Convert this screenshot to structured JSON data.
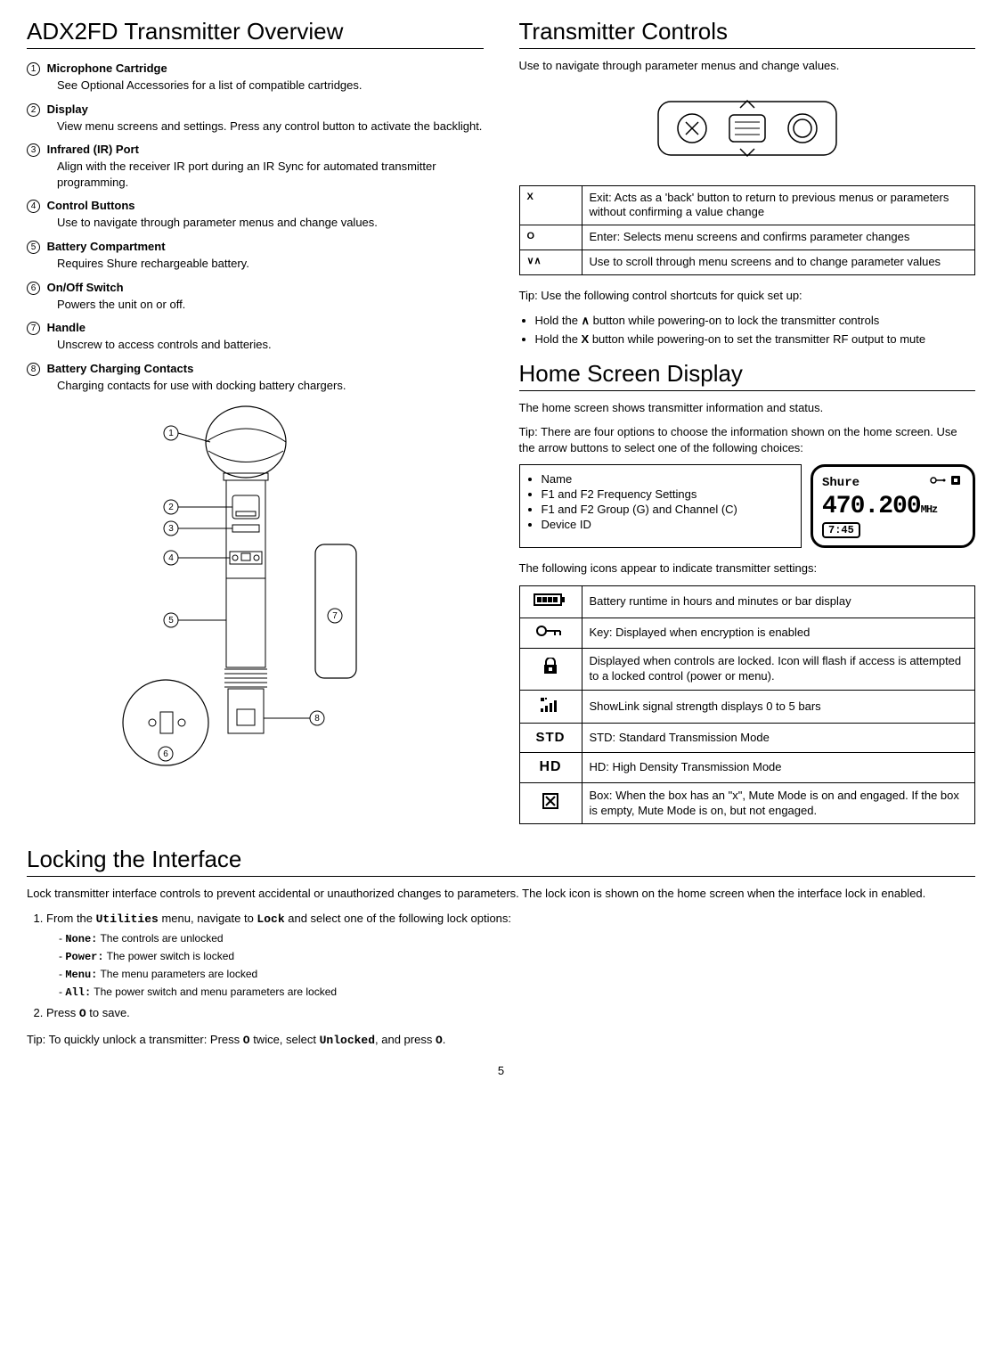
{
  "page_number": "5",
  "left": {
    "heading": "ADX2FD Transmitter Overview",
    "items": [
      {
        "num": "1",
        "title": "Microphone Cartridge",
        "desc": "See Optional Accessories for a list of compatible cartridges."
      },
      {
        "num": "2",
        "title": "Display",
        "desc": "View menu screens and settings. Press any control button to activate the backlight."
      },
      {
        "num": "3",
        "title": "Infrared (IR) Port",
        "desc": "Align with the receiver IR port during an IR Sync for automated transmitter programming."
      },
      {
        "num": "4",
        "title": "Control Buttons",
        "desc": "Use to navigate through parameter menus and change values."
      },
      {
        "num": "5",
        "title": "Battery Compartment",
        "desc": "Requires Shure rechargeable battery."
      },
      {
        "num": "6",
        "title": "On/Off Switch",
        "desc": "Powers the unit on or off."
      },
      {
        "num": "7",
        "title": "Handle",
        "desc": "Unscrew to access controls and batteries."
      },
      {
        "num": "8",
        "title": "Battery Charging Contacts",
        "desc": "Charging contacts for use with docking battery chargers."
      }
    ],
    "diagram_callouts": [
      "1",
      "2",
      "3",
      "4",
      "5",
      "6",
      "7",
      "8"
    ]
  },
  "right_controls": {
    "heading": "Transmitter Controls",
    "intro": "Use to navigate through parameter menus and change values.",
    "rows": [
      {
        "key": "X",
        "desc": "Exit: Acts as a 'back' button to return to previous menus or parameters without confirming a value change"
      },
      {
        "key": "O",
        "desc": "Enter: Selects menu screens and confirms parameter changes"
      },
      {
        "key": "∨∧",
        "desc": "Use to scroll through menu screens and to change parameter values"
      }
    ],
    "tip_intro": "Tip: Use the following control shortcuts for quick set up:",
    "tips": [
      "Hold the ∧ button while powering-on to lock the transmitter controls",
      "Hold the X button while powering-on to set the transmitter RF output to mute"
    ],
    "tip_bold_tokens": [
      "∧",
      "X"
    ]
  },
  "right_home": {
    "heading": "Home Screen Display",
    "p1": "The home screen shows transmitter information and status.",
    "p2": "Tip: There are four options to choose the information shown on the home screen. Use the arrow buttons to select one of the following choices:",
    "options": [
      "Name",
      "F1 and F2 Frequency Settings",
      "F1 and F2 Group (G) and Channel (C)",
      "Device ID"
    ],
    "screen": {
      "name": "Shure",
      "freq": "470.200",
      "unit": "MHz",
      "time": "7:45"
    },
    "icons_intro": "The following icons appear to indicate transmitter settings:",
    "icon_rows": [
      {
        "label": "battery",
        "desc": "Battery runtime in hours and minutes or bar display"
      },
      {
        "label": "key",
        "desc": "Key: Displayed when encryption is enabled"
      },
      {
        "label": "lock",
        "desc": "Displayed when controls are locked. Icon will flash if access is attempted to a locked control (power or menu)."
      },
      {
        "label": "signal",
        "desc": "ShowLink signal strength displays 0 to 5 bars"
      },
      {
        "label": "STD",
        "desc": "STD: Standard Transmission Mode"
      },
      {
        "label": "HD",
        "desc": "HD: High Density Transmission Mode"
      },
      {
        "label": "box",
        "desc": "Box: When the box has an \"x\", Mute Mode is on and engaged. If the box is empty, Mute Mode is on, but not engaged."
      }
    ]
  },
  "locking": {
    "heading": "Locking the Interface",
    "p1": "Lock transmitter interface controls to prevent accidental or unauthorized changes to parameters. The lock icon is shown on the home screen when the interface lock in enabled.",
    "step1_pre": "From the ",
    "step1_mono1": "Utilities",
    "step1_mid": " menu, navigate to ",
    "step1_mono2": "Lock",
    "step1_post": " and select one of the following lock options:",
    "options": [
      {
        "k": "None:",
        "v": " The controls are unlocked"
      },
      {
        "k": "Power:",
        "v": " The power switch is locked"
      },
      {
        "k": "Menu:",
        "v": " The menu parameters are locked"
      },
      {
        "k": "All:",
        "v": " The power switch and menu parameters are locked"
      }
    ],
    "step2_pre": "Press ",
    "step2_mono": "O",
    "step2_post": " to save.",
    "tip_pre": "Tip: To quickly unlock a transmitter: Press ",
    "tip_m1": "O",
    "tip_mid1": " twice, select ",
    "tip_m2": "Unlocked",
    "tip_mid2": ", and press ",
    "tip_m3": "O",
    "tip_post": "."
  }
}
